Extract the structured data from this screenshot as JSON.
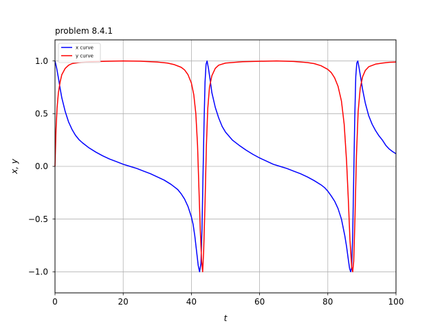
{
  "chart_data": {
    "type": "line",
    "title": "problem 8.4.1",
    "xlabel": "t",
    "ylabel": "x, y",
    "xlim": [
      0,
      100
    ],
    "ylim": [
      -1.2,
      1.2
    ],
    "grid": true,
    "legend_position": "top-left",
    "xticks": [
      0,
      20,
      40,
      60,
      80,
      100
    ],
    "xtick_labels": [
      "0",
      "20",
      "40",
      "60",
      "80",
      "100"
    ],
    "yticks": [
      -1.0,
      -0.5,
      0.0,
      0.5,
      1.0
    ],
    "ytick_labels": [
      "−1.0",
      "−0.5",
      "0.0",
      "0.5",
      "1.0"
    ],
    "series": [
      {
        "name": "x curve",
        "color": "#0000ff",
        "points": [
          [
            0,
            1.0
          ],
          [
            0.5,
            0.93
          ],
          [
            1,
            0.84
          ],
          [
            1.5,
            0.74
          ],
          [
            2,
            0.65
          ],
          [
            3,
            0.52
          ],
          [
            4,
            0.42
          ],
          [
            5,
            0.35
          ],
          [
            6,
            0.295
          ],
          [
            7,
            0.255
          ],
          [
            8,
            0.225
          ],
          [
            10,
            0.175
          ],
          [
            12,
            0.135
          ],
          [
            14,
            0.1
          ],
          [
            16,
            0.07
          ],
          [
            18,
            0.045
          ],
          [
            20,
            0.02
          ],
          [
            22,
            0.0
          ],
          [
            24,
            -0.02
          ],
          [
            26,
            -0.045
          ],
          [
            28,
            -0.07
          ],
          [
            30,
            -0.1
          ],
          [
            32,
            -0.13
          ],
          [
            34,
            -0.17
          ],
          [
            36,
            -0.22
          ],
          [
            37,
            -0.26
          ],
          [
            38,
            -0.31
          ],
          [
            39,
            -0.38
          ],
          [
            40,
            -0.48
          ],
          [
            40.5,
            -0.55
          ],
          [
            41,
            -0.66
          ],
          [
            41.5,
            -0.8
          ],
          [
            42,
            -0.94
          ],
          [
            42.4,
            -1.0
          ],
          [
            42.8,
            -0.92
          ],
          [
            43.1,
            -0.6
          ],
          [
            43.4,
            -0.1
          ],
          [
            43.7,
            0.4
          ],
          [
            44,
            0.8
          ],
          [
            44.3,
            0.97
          ],
          [
            44.6,
            1.0
          ],
          [
            45,
            0.93
          ],
          [
            45.5,
            0.82
          ],
          [
            46,
            0.7
          ],
          [
            47,
            0.56
          ],
          [
            48,
            0.46
          ],
          [
            49,
            0.38
          ],
          [
            50,
            0.325
          ],
          [
            52,
            0.25
          ],
          [
            54,
            0.2
          ],
          [
            56,
            0.155
          ],
          [
            58,
            0.115
          ],
          [
            60,
            0.08
          ],
          [
            62,
            0.05
          ],
          [
            64,
            0.02
          ],
          [
            66,
            0.0
          ],
          [
            68,
            -0.02
          ],
          [
            70,
            -0.045
          ],
          [
            72,
            -0.07
          ],
          [
            74,
            -0.1
          ],
          [
            76,
            -0.135
          ],
          [
            78,
            -0.175
          ],
          [
            79,
            -0.2
          ],
          [
            80,
            -0.235
          ],
          [
            81,
            -0.28
          ],
          [
            82,
            -0.33
          ],
          [
            83,
            -0.4
          ],
          [
            84,
            -0.5
          ],
          [
            85,
            -0.66
          ],
          [
            85.5,
            -0.76
          ],
          [
            86,
            -0.88
          ],
          [
            86.4,
            -0.97
          ],
          [
            86.7,
            -1.0
          ],
          [
            87,
            -0.96
          ],
          [
            87.3,
            -0.65
          ],
          [
            87.6,
            -0.1
          ],
          [
            87.9,
            0.45
          ],
          [
            88.2,
            0.85
          ],
          [
            88.5,
            0.98
          ],
          [
            88.8,
            1.0
          ],
          [
            89.2,
            0.93
          ],
          [
            89.7,
            0.83
          ],
          [
            90.2,
            0.73
          ],
          [
            91,
            0.6
          ],
          [
            92,
            0.48
          ],
          [
            93,
            0.4
          ],
          [
            94,
            0.34
          ],
          [
            95,
            0.29
          ],
          [
            96,
            0.25
          ],
          [
            97,
            0.2
          ],
          [
            98,
            0.165
          ],
          [
            99,
            0.14
          ],
          [
            100,
            0.12
          ]
        ]
      },
      {
        "name": "y curve",
        "color": "#ff0000",
        "points": [
          [
            0,
            0.0
          ],
          [
            0.3,
            0.35
          ],
          [
            0.6,
            0.55
          ],
          [
            1,
            0.7
          ],
          [
            1.5,
            0.8
          ],
          [
            2,
            0.87
          ],
          [
            3,
            0.93
          ],
          [
            4,
            0.96
          ],
          [
            5,
            0.975
          ],
          [
            7,
            0.985
          ],
          [
            10,
            0.992
          ],
          [
            15,
            0.997
          ],
          [
            20,
            1.0
          ],
          [
            25,
            0.998
          ],
          [
            30,
            0.99
          ],
          [
            33,
            0.98
          ],
          [
            35,
            0.965
          ],
          [
            37,
            0.94
          ],
          [
            38,
            0.915
          ],
          [
            39,
            0.87
          ],
          [
            40,
            0.79
          ],
          [
            40.7,
            0.68
          ],
          [
            41.3,
            0.5
          ],
          [
            41.8,
            0.2
          ],
          [
            42.2,
            -0.2
          ],
          [
            42.6,
            -0.6
          ],
          [
            43,
            -0.9
          ],
          [
            43.3,
            -1.0
          ],
          [
            43.6,
            -0.8
          ],
          [
            44,
            -0.35
          ],
          [
            44.4,
            0.2
          ],
          [
            44.8,
            0.55
          ],
          [
            45.3,
            0.75
          ],
          [
            46,
            0.86
          ],
          [
            47,
            0.93
          ],
          [
            48,
            0.96
          ],
          [
            50,
            0.98
          ],
          [
            55,
            0.993
          ],
          [
            60,
            0.997
          ],
          [
            65,
            1.0
          ],
          [
            70,
            0.995
          ],
          [
            74,
            0.985
          ],
          [
            76,
            0.975
          ],
          [
            78,
            0.955
          ],
          [
            80,
            0.92
          ],
          [
            81,
            0.89
          ],
          [
            82,
            0.84
          ],
          [
            83,
            0.76
          ],
          [
            84,
            0.62
          ],
          [
            84.8,
            0.4
          ],
          [
            85.5,
            0.05
          ],
          [
            86,
            -0.3
          ],
          [
            86.5,
            -0.7
          ],
          [
            87,
            -0.95
          ],
          [
            87.3,
            -1.0
          ],
          [
            87.6,
            -0.9
          ],
          [
            88,
            -0.45
          ],
          [
            88.4,
            0.1
          ],
          [
            88.9,
            0.52
          ],
          [
            89.5,
            0.74
          ],
          [
            90.2,
            0.85
          ],
          [
            91,
            0.91
          ],
          [
            92,
            0.945
          ],
          [
            94,
            0.97
          ],
          [
            96,
            0.98
          ],
          [
            98,
            0.987
          ],
          [
            100,
            0.99
          ]
        ]
      }
    ]
  }
}
